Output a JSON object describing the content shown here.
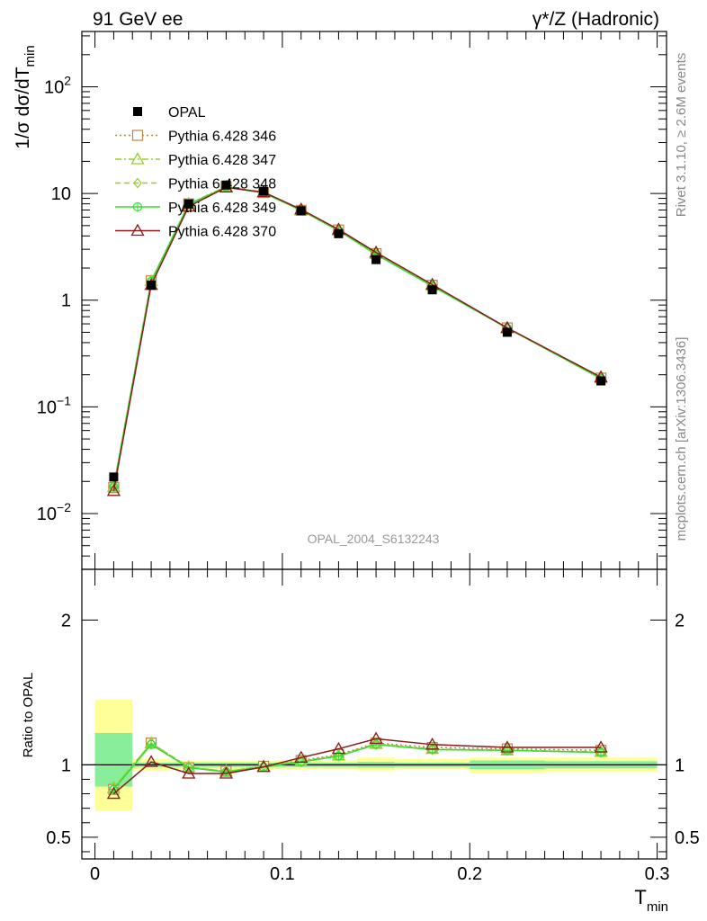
{
  "header": {
    "left": "91 GeV ee",
    "right": "γ*/Z (Hadronic)"
  },
  "side_labels": {
    "rivet": "Rivet 3.1.10, ≥ 2.6M events",
    "mcplots": "mcplots.cern.ch [arXiv:1306.3436]"
  },
  "analysis_id": "OPAL_2004_S6132243",
  "chart_data": [
    {
      "type": "line",
      "panel": "main",
      "ylabel": "1/σ dσ/dT_min",
      "yscale": "log",
      "ylim": [
        0.003,
        330
      ],
      "xlim": [
        -0.007,
        0.305
      ],
      "yticks": [
        {
          "value": 0.01,
          "base": "10",
          "exp": "−2"
        },
        {
          "value": 0.1,
          "base": "10",
          "exp": "−1"
        },
        {
          "value": 1,
          "label": "1"
        },
        {
          "value": 10,
          "label": "10"
        },
        {
          "value": 100,
          "base": "10",
          "exp": "2"
        }
      ],
      "legend_position": "top-left",
      "data": {
        "name": "OPAL",
        "x": [
          0.01,
          0.03,
          0.05,
          0.07,
          0.09,
          0.11,
          0.13,
          0.15,
          0.18,
          0.22,
          0.27
        ],
        "y": [
          0.022,
          1.38,
          8.0,
          12.0,
          10.5,
          6.9,
          4.2,
          2.4,
          1.25,
          0.5,
          0.175
        ]
      },
      "series": [
        {
          "name": "Pythia 6.428 346",
          "color": "#b8864b",
          "marker": "square-open",
          "dash": "2,3",
          "y": [
            0.0175,
            1.52,
            8.0,
            11.6,
            10.2,
            6.95,
            4.55,
            2.73,
            1.38,
            0.55,
            0.186
          ]
        },
        {
          "name": "Pythia 6.428 347",
          "color": "#9acd32",
          "marker": "triangle-open",
          "dash": "7,3,2,3",
          "y": [
            0.0178,
            1.51,
            8.0,
            11.6,
            10.2,
            6.95,
            4.52,
            2.72,
            1.37,
            0.55,
            0.185
          ]
        },
        {
          "name": "Pythia 6.428 348",
          "color": "#9acd32",
          "marker": "diamond-open",
          "dash": "6,4",
          "y": [
            0.018,
            1.52,
            7.9,
            11.5,
            10.1,
            6.95,
            4.5,
            2.7,
            1.36,
            0.548,
            0.184
          ]
        },
        {
          "name": "Pythia 6.428 349",
          "color": "#33dd33",
          "marker": "circle-cross",
          "dash": "",
          "y": [
            0.0178,
            1.5,
            7.9,
            11.5,
            10.1,
            6.95,
            4.48,
            2.68,
            1.35,
            0.547,
            0.184
          ]
        },
        {
          "name": "Pythia 6.428 370",
          "color": "#8b1a1a",
          "marker": "triangle-open",
          "dash": "",
          "y": [
            0.0163,
            1.39,
            7.55,
            11.4,
            10.3,
            7.1,
            4.6,
            2.8,
            1.4,
            0.55,
            0.19
          ]
        }
      ]
    },
    {
      "type": "line",
      "panel": "ratio",
      "ylabel": "Ratio to OPAL",
      "xlabel": "T_min",
      "ylim": [
        0.35,
        2.35
      ],
      "yticks": [
        0.5,
        1,
        2
      ],
      "xticks": [
        {
          "value": 0,
          "label": "0"
        },
        {
          "value": 0.1,
          "label": "0.1"
        },
        {
          "value": 0.2,
          "label": "0.2"
        },
        {
          "value": 0.3,
          "label": "0.3"
        }
      ],
      "bins": [
        {
          "xlo": 0.0,
          "xhi": 0.02,
          "stat": [
            0.85,
            1.22
          ],
          "tot": [
            0.68,
            1.45
          ]
        },
        {
          "xlo": 0.02,
          "xhi": 0.04,
          "stat": [
            0.985,
            1.015
          ],
          "tot": [
            0.96,
            1.04
          ]
        },
        {
          "xlo": 0.04,
          "xhi": 0.06,
          "stat": [
            0.985,
            1.015
          ],
          "tot": [
            0.97,
            1.03
          ]
        },
        {
          "xlo": 0.06,
          "xhi": 0.08,
          "stat": [
            0.985,
            1.015
          ],
          "tot": [
            0.97,
            1.03
          ]
        },
        {
          "xlo": 0.08,
          "xhi": 0.1,
          "stat": [
            0.985,
            1.015
          ],
          "tot": [
            0.97,
            1.03
          ]
        },
        {
          "xlo": 0.1,
          "xhi": 0.12,
          "stat": [
            0.985,
            1.015
          ],
          "tot": [
            0.97,
            1.03
          ]
        },
        {
          "xlo": 0.12,
          "xhi": 0.14,
          "stat": [
            0.985,
            1.015
          ],
          "tot": [
            0.97,
            1.03
          ]
        },
        {
          "xlo": 0.14,
          "xhi": 0.16,
          "stat": [
            0.98,
            1.02
          ],
          "tot": [
            0.96,
            1.05
          ]
        },
        {
          "xlo": 0.16,
          "xhi": 0.2,
          "stat": [
            0.985,
            1.015
          ],
          "tot": [
            0.97,
            1.04
          ]
        },
        {
          "xlo": 0.2,
          "xhi": 0.24,
          "stat": [
            0.97,
            1.03
          ],
          "tot": [
            0.94,
            1.05
          ]
        },
        {
          "xlo": 0.24,
          "xhi": 0.3,
          "stat": [
            0.975,
            1.025
          ],
          "tot": [
            0.95,
            1.05
          ]
        }
      ],
      "x": [
        0.01,
        0.03,
        0.05,
        0.07,
        0.09,
        0.11,
        0.13,
        0.15,
        0.18,
        0.22,
        0.27
      ],
      "series": [
        {
          "name": "Pythia 6.428 346",
          "y": [
            0.83,
            1.15,
            0.98,
            0.955,
            0.99,
            1.03,
            1.07,
            1.15,
            1.12,
            1.11,
            1.1
          ]
        },
        {
          "name": "Pythia 6.428 347",
          "y": [
            0.84,
            1.15,
            0.985,
            0.955,
            0.99,
            1.025,
            1.065,
            1.145,
            1.11,
            1.1,
            1.09
          ]
        },
        {
          "name": "Pythia 6.428 348",
          "y": [
            0.84,
            1.15,
            0.985,
            0.955,
            0.99,
            1.02,
            1.06,
            1.14,
            1.105,
            1.1,
            1.085
          ]
        },
        {
          "name": "Pythia 6.428 349",
          "y": [
            0.83,
            1.14,
            0.98,
            0.95,
            0.985,
            1.02,
            1.06,
            1.14,
            1.105,
            1.1,
            1.085
          ]
        },
        {
          "name": "Pythia 6.428 370",
          "y": [
            0.8,
            1.02,
            0.94,
            0.94,
            0.985,
            1.05,
            1.11,
            1.18,
            1.14,
            1.12,
            1.12
          ]
        }
      ]
    }
  ]
}
